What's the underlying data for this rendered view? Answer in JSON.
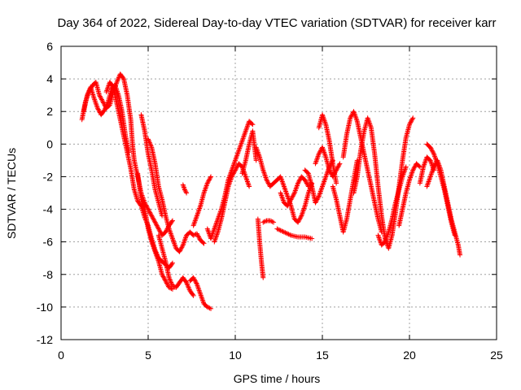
{
  "chart_data": {
    "type": "scatter",
    "title": "Day 364 of 2022, Sidereal Day-to-day VTEC variation (SDTVAR) for receiver karr",
    "xlabel": "GPS time / hours",
    "ylabel": "SDTVAR / TECUs",
    "xlim": [
      0,
      25
    ],
    "ylim": [
      -12,
      6
    ],
    "xticks": [
      0,
      5,
      10,
      15,
      20,
      25
    ],
    "yticks": [
      -12,
      -10,
      -8,
      -6,
      -4,
      -2,
      0,
      2,
      4,
      6
    ],
    "xtick_labels": [
      "0",
      "5",
      "10",
      "15",
      "20",
      "25"
    ],
    "ytick_labels": [
      "-12",
      "-10",
      "-8",
      "-6",
      "-4",
      "-2",
      "0",
      "2",
      "4",
      "6"
    ],
    "grid": true,
    "marker": "+",
    "color": "#ff0000",
    "tracks": [
      [
        [
          1.2,
          1.5
        ],
        [
          1.4,
          2.6
        ],
        [
          1.6,
          3.2
        ],
        [
          1.8,
          3.6
        ],
        [
          2.0,
          3.8
        ],
        [
          2.2,
          3.0
        ],
        [
          2.4,
          2.6
        ],
        [
          2.6,
          2.2
        ],
        [
          2.8,
          2.4
        ],
        [
          3.0,
          3.2
        ],
        [
          3.2,
          3.8
        ],
        [
          3.4,
          4.3
        ],
        [
          3.6,
          4.0
        ],
        [
          3.8,
          3.0
        ],
        [
          4.0,
          1.5
        ],
        [
          4.1,
          0.0
        ],
        [
          4.2,
          -1.0
        ],
        [
          4.4,
          -2.0
        ],
        [
          4.6,
          -3.0
        ],
        [
          4.8,
          -3.6
        ],
        [
          5.0,
          -4.0
        ],
        [
          5.2,
          -4.4
        ],
        [
          5.4,
          -4.8
        ],
        [
          5.6,
          -5.2
        ],
        [
          5.8,
          -5.6
        ],
        [
          6.0,
          -5.4
        ],
        [
          6.2,
          -5.0
        ],
        [
          6.4,
          -4.7
        ]
      ],
      [
        [
          1.3,
          2.0
        ],
        [
          1.5,
          3.0
        ],
        [
          1.7,
          3.5
        ],
        [
          1.9,
          2.8
        ],
        [
          2.1,
          2.2
        ],
        [
          2.3,
          1.8
        ],
        [
          2.5,
          2.1
        ],
        [
          2.7,
          2.6
        ],
        [
          2.9,
          3.4
        ],
        [
          3.1,
          3.6
        ],
        [
          3.3,
          3.0
        ],
        [
          3.5,
          2.0
        ],
        [
          3.7,
          0.5
        ],
        [
          3.9,
          -0.5
        ]
      ],
      [
        [
          2.6,
          3.2
        ],
        [
          2.8,
          3.8
        ],
        [
          3.0,
          3.5
        ],
        [
          3.2,
          2.5
        ],
        [
          3.4,
          1.5
        ],
        [
          3.6,
          0.5
        ],
        [
          3.8,
          -0.5
        ],
        [
          4.0,
          -1.5
        ],
        [
          4.2,
          -2.8
        ],
        [
          4.4,
          -3.5
        ],
        [
          4.6,
          -3.8
        ],
        [
          4.8,
          -4.5
        ],
        [
          5.0,
          -5.0
        ],
        [
          5.2,
          -5.8
        ],
        [
          5.4,
          -6.5
        ],
        [
          5.6,
          -7.0
        ],
        [
          5.8,
          -7.2
        ],
        [
          6.0,
          -7.4
        ],
        [
          6.2,
          -7.6
        ],
        [
          6.4,
          -7.3
        ]
      ],
      [
        [
          4.4,
          -1.8
        ],
        [
          4.5,
          -2.6
        ],
        [
          4.6,
          -3.4
        ],
        [
          4.8,
          -4.0
        ],
        [
          5.0,
          -5.2
        ],
        [
          5.2,
          -6.0
        ],
        [
          5.4,
          -6.6
        ],
        [
          5.6,
          -7.2
        ],
        [
          5.8,
          -8.0
        ],
        [
          6.0,
          -8.4
        ],
        [
          6.2,
          -8.8
        ],
        [
          6.4,
          -8.9
        ]
      ],
      [
        [
          5.6,
          -5.6
        ],
        [
          5.8,
          -6.4
        ],
        [
          6.0,
          -7.2
        ],
        [
          6.2,
          -8.2
        ],
        [
          6.4,
          -8.7
        ],
        [
          6.6,
          -8.8
        ],
        [
          6.8,
          -8.5
        ],
        [
          7.0,
          -8.2
        ],
        [
          7.2,
          -8.5
        ],
        [
          7.4,
          -9.0
        ],
        [
          7.6,
          -9.3
        ]
      ],
      [
        [
          7.4,
          -8.4
        ],
        [
          7.6,
          -8.2
        ],
        [
          7.8,
          -8.6
        ],
        [
          8.0,
          -9.2
        ],
        [
          8.2,
          -9.8
        ],
        [
          8.4,
          -10.0
        ],
        [
          8.6,
          -10.1
        ]
      ],
      [
        [
          4.6,
          1.8
        ],
        [
          4.8,
          0.8
        ],
        [
          5.0,
          -0.6
        ],
        [
          5.2,
          -1.6
        ],
        [
          5.4,
          -2.8
        ],
        [
          5.6,
          -3.6
        ],
        [
          5.8,
          -4.4
        ]
      ],
      [
        [
          5.0,
          0.3
        ],
        [
          5.2,
          -0.2
        ],
        [
          5.4,
          -1.2
        ],
        [
          5.6,
          -2.6
        ],
        [
          5.8,
          -3.4
        ],
        [
          6.0,
          -4.4
        ],
        [
          6.2,
          -5.2
        ],
        [
          6.4,
          -5.8
        ],
        [
          6.6,
          -6.4
        ],
        [
          6.8,
          -6.6
        ],
        [
          7.0,
          -6.2
        ],
        [
          7.2,
          -5.6
        ],
        [
          7.4,
          -5.4
        ],
        [
          7.6,
          -5.6
        ],
        [
          7.8,
          -5.5
        ],
        [
          8.0,
          -5.9
        ],
        [
          8.2,
          -6.1
        ]
      ],
      [
        [
          7.0,
          -2.5
        ],
        [
          7.1,
          -2.8
        ],
        [
          7.2,
          -3.0
        ]
      ],
      [
        [
          7.6,
          -5.0
        ],
        [
          7.8,
          -4.4
        ],
        [
          8.0,
          -3.8
        ],
        [
          8.2,
          -3.0
        ],
        [
          8.4,
          -2.4
        ],
        [
          8.6,
          -2.0
        ]
      ],
      [
        [
          8.4,
          -5.2
        ],
        [
          8.6,
          -5.8
        ],
        [
          8.8,
          -5.2
        ],
        [
          9.0,
          -4.6
        ],
        [
          9.2,
          -4.0
        ],
        [
          9.4,
          -3.2
        ],
        [
          9.6,
          -2.2
        ],
        [
          9.8,
          -1.6
        ],
        [
          10.0,
          -1.0
        ],
        [
          10.2,
          -0.4
        ],
        [
          10.4,
          0.2
        ],
        [
          10.6,
          0.8
        ],
        [
          10.8,
          1.4
        ],
        [
          11.0,
          1.2
        ]
      ],
      [
        [
          8.8,
          -6.0
        ],
        [
          9.0,
          -5.4
        ],
        [
          9.2,
          -4.6
        ],
        [
          9.4,
          -3.6
        ],
        [
          9.6,
          -2.6
        ],
        [
          9.8,
          -2.0
        ],
        [
          10.0,
          -1.6
        ],
        [
          10.2,
          -1.2
        ],
        [
          10.4,
          -1.4
        ],
        [
          10.6,
          -2.0
        ],
        [
          10.8,
          -2.6
        ]
      ],
      [
        [
          10.4,
          -1.8
        ],
        [
          10.6,
          -1.0
        ],
        [
          10.8,
          0.0
        ],
        [
          11.0,
          0.8
        ],
        [
          11.2,
          -1.0
        ]
      ],
      [
        [
          11.2,
          -0.2
        ],
        [
          11.4,
          -0.8
        ],
        [
          11.6,
          -1.6
        ],
        [
          11.8,
          -2.2
        ],
        [
          12.0,
          -2.6
        ],
        [
          12.2,
          -2.4
        ],
        [
          12.4,
          -2.2
        ],
        [
          12.6,
          -2.0
        ],
        [
          12.8,
          -2.6
        ],
        [
          13.0,
          -3.2
        ],
        [
          13.2,
          -3.8
        ],
        [
          13.4,
          -4.6
        ],
        [
          13.6,
          -4.8
        ],
        [
          13.8,
          -4.4
        ],
        [
          14.0,
          -3.8
        ],
        [
          14.2,
          -3.0
        ],
        [
          14.4,
          -2.4
        ]
      ],
      [
        [
          11.3,
          -4.6
        ],
        [
          11.4,
          -6.0
        ],
        [
          11.5,
          -7.2
        ],
        [
          11.6,
          -8.2
        ]
      ],
      [
        [
          11.6,
          -4.8
        ],
        [
          11.8,
          -4.7
        ],
        [
          12.0,
          -4.7
        ],
        [
          12.2,
          -4.8
        ]
      ],
      [
        [
          12.4,
          -5.2
        ],
        [
          12.8,
          -5.4
        ],
        [
          13.2,
          -5.6
        ],
        [
          13.6,
          -5.7
        ],
        [
          14.0,
          -5.7
        ],
        [
          14.4,
          -5.8
        ]
      ],
      [
        [
          12.6,
          -3.0
        ],
        [
          12.8,
          -3.6
        ],
        [
          13.0,
          -3.8
        ],
        [
          13.2,
          -3.4
        ],
        [
          13.4,
          -3.0
        ],
        [
          13.6,
          -2.4
        ],
        [
          13.8,
          -2.0
        ],
        [
          14.0,
          -2.2
        ],
        [
          14.2,
          -2.6
        ]
      ],
      [
        [
          14.0,
          -1.6
        ],
        [
          14.2,
          -1.8
        ],
        [
          14.4,
          -2.6
        ],
        [
          14.6,
          -3.6
        ],
        [
          14.8,
          -3.2
        ],
        [
          15.0,
          -2.6
        ],
        [
          15.2,
          -2.0
        ],
        [
          15.4,
          -1.4
        ],
        [
          15.6,
          -1.0
        ]
      ],
      [
        [
          14.6,
          -1.2
        ],
        [
          14.8,
          -0.6
        ],
        [
          15.0,
          -0.2
        ],
        [
          15.2,
          -0.8
        ],
        [
          15.4,
          -1.6
        ],
        [
          15.6,
          -2.0
        ],
        [
          15.8,
          -1.6
        ],
        [
          16.0,
          -1.2
        ]
      ],
      [
        [
          14.8,
          1.0
        ],
        [
          15.0,
          1.8
        ],
        [
          15.2,
          1.2
        ],
        [
          15.4,
          0.2
        ],
        [
          15.6,
          -1.2
        ],
        [
          15.8,
          -2.4
        ]
      ],
      [
        [
          15.6,
          -2.6
        ],
        [
          15.8,
          -3.4
        ],
        [
          16.0,
          -4.4
        ],
        [
          16.2,
          -5.4
        ],
        [
          16.4,
          -4.6
        ],
        [
          16.6,
          -3.4
        ],
        [
          16.8,
          -2.2
        ],
        [
          17.0,
          -1.0
        ]
      ],
      [
        [
          16.2,
          -0.8
        ],
        [
          16.4,
          0.6
        ],
        [
          16.6,
          1.6
        ],
        [
          16.8,
          2.0
        ],
        [
          17.0,
          1.4
        ],
        [
          17.2,
          0.4
        ],
        [
          17.4,
          -0.6
        ],
        [
          17.6,
          -1.6
        ],
        [
          17.8,
          -2.6
        ],
        [
          18.0,
          -3.6
        ],
        [
          18.2,
          -4.6
        ],
        [
          18.4,
          -5.4
        ]
      ],
      [
        [
          16.8,
          -3.0
        ],
        [
          17.0,
          -2.0
        ],
        [
          17.2,
          -0.4
        ],
        [
          17.4,
          0.8
        ],
        [
          17.6,
          1.6
        ],
        [
          17.8,
          1.0
        ],
        [
          18.0,
          -0.6
        ],
        [
          18.2,
          -2.6
        ],
        [
          18.4,
          -4.4
        ],
        [
          18.6,
          -5.8
        ],
        [
          18.8,
          -6.4
        ],
        [
          19.0,
          -5.6
        ],
        [
          19.2,
          -4.2
        ],
        [
          19.4,
          -2.6
        ],
        [
          19.6,
          -1.0
        ],
        [
          19.8,
          0.4
        ],
        [
          20.0,
          1.2
        ],
        [
          20.2,
          1.6
        ]
      ],
      [
        [
          18.2,
          -5.6
        ],
        [
          18.4,
          -6.2
        ],
        [
          18.6,
          -6.0
        ],
        [
          18.8,
          -5.4
        ],
        [
          19.0,
          -4.6
        ],
        [
          19.2,
          -3.6
        ],
        [
          19.4,
          -2.8
        ],
        [
          19.6,
          -2.0
        ],
        [
          19.8,
          -1.4
        ]
      ],
      [
        [
          19.4,
          -5.0
        ],
        [
          19.6,
          -4.0
        ],
        [
          19.8,
          -3.0
        ],
        [
          20.0,
          -2.2
        ],
        [
          20.2,
          -1.6
        ],
        [
          20.4,
          -1.2
        ],
        [
          20.6,
          -1.4
        ]
      ],
      [
        [
          20.6,
          -2.4
        ],
        [
          20.8,
          -1.4
        ],
        [
          21.0,
          -0.8
        ],
        [
          21.2,
          -1.0
        ],
        [
          21.4,
          -1.6
        ]
      ],
      [
        [
          21.0,
          -2.6
        ],
        [
          21.2,
          -2.0
        ],
        [
          21.4,
          -1.4
        ],
        [
          21.6,
          -1.0
        ],
        [
          21.8,
          -1.6
        ],
        [
          22.0,
          -2.6
        ],
        [
          22.2,
          -3.6
        ],
        [
          22.4,
          -4.6
        ],
        [
          22.6,
          -5.4
        ],
        [
          22.8,
          -6.2
        ],
        [
          22.9,
          -6.8
        ]
      ],
      [
        [
          21.0,
          0.0
        ],
        [
          21.2,
          -0.2
        ],
        [
          21.4,
          -0.6
        ],
        [
          21.6,
          -1.2
        ],
        [
          21.8,
          -2.0
        ],
        [
          22.0,
          -2.8
        ],
        [
          22.2,
          -3.8
        ],
        [
          22.4,
          -4.8
        ],
        [
          22.6,
          -5.6
        ]
      ]
    ]
  }
}
